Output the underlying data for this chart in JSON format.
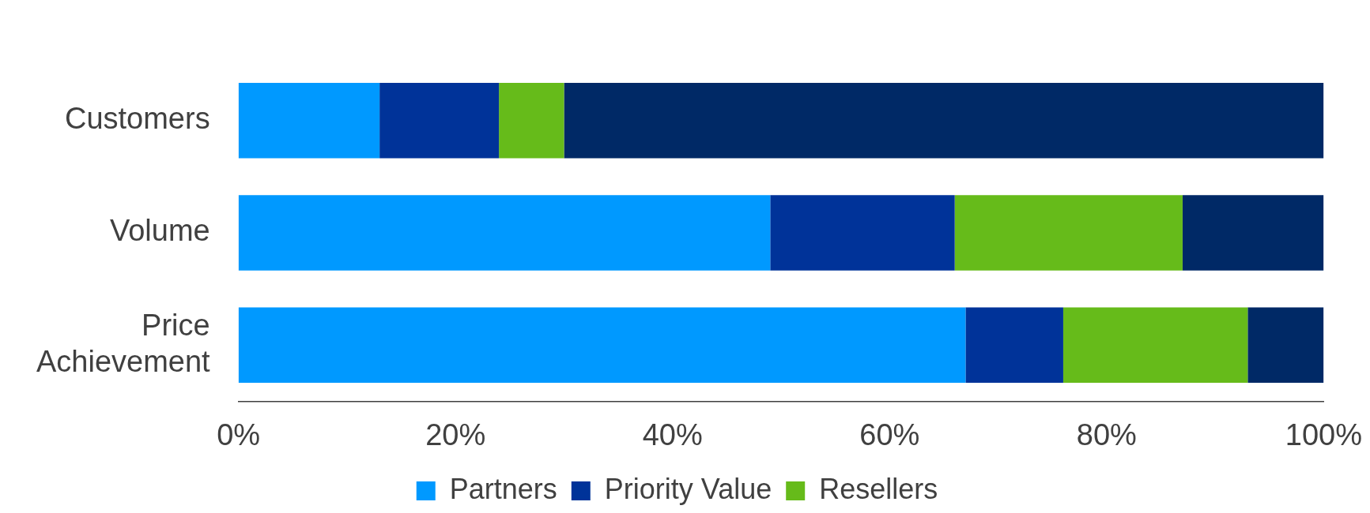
{
  "chart_data": {
    "type": "bar",
    "orientation": "horizontal",
    "stacked": true,
    "categories": [
      "Customers",
      "Volume",
      "Price\nAchievement"
    ],
    "series": [
      {
        "name": "Partners",
        "color": "#0099ff",
        "values": [
          13,
          49,
          67
        ]
      },
      {
        "name": "Priority Value",
        "color": "#003399",
        "values": [
          11,
          17,
          9
        ]
      },
      {
        "name": "Resellers",
        "color": "#66bb1a",
        "values": [
          6,
          21,
          17
        ]
      },
      {
        "color": "#002966",
        "values": [
          70,
          13,
          7
        ]
      }
    ],
    "xlim": [
      0,
      100
    ],
    "xticks": [
      {
        "value": 0,
        "label": "0%"
      },
      {
        "value": 20,
        "label": "20%"
      },
      {
        "value": 40,
        "label": "40%"
      },
      {
        "value": 60,
        "label": "60%"
      },
      {
        "value": 80,
        "label": "80%"
      },
      {
        "value": 100,
        "label": "100%"
      }
    ],
    "grid": false,
    "legend": "bottom"
  }
}
